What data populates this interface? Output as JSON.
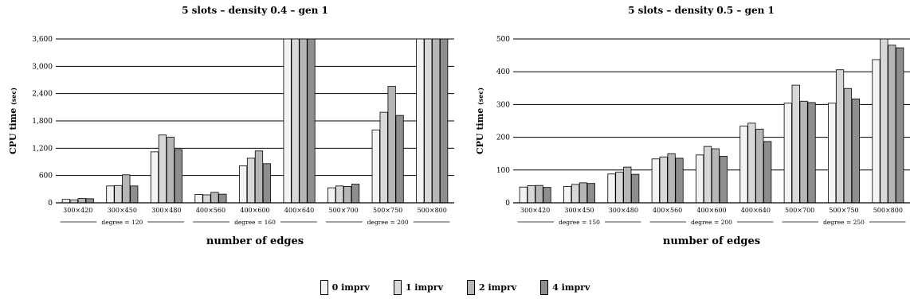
{
  "chart_data": [
    {
      "type": "bar",
      "title": "5 slots – density 0.4 – gen 1",
      "ylabel_main": "CPU time",
      "ylabel_unit": "(sec)",
      "xlabel": "number of edges",
      "ylim": [
        0,
        3600
      ],
      "yticks": [
        0,
        600,
        1200,
        1800,
        2400,
        3000,
        3600
      ],
      "ytick_labels": [
        "0",
        "600",
        "1,200",
        "1,800",
        "2,400",
        "3,000",
        "3,600"
      ],
      "grid": "horizontal",
      "categories": [
        "300×420",
        "300×450",
        "300×480",
        "400×560",
        "400×600",
        "400×640",
        "500×700",
        "500×750",
        "500×800"
      ],
      "groups": [
        {
          "label": "degree = 120",
          "from": 0,
          "to": 2
        },
        {
          "label": "degree = 160",
          "from": 3,
          "to": 5
        },
        {
          "label": "degree = 200",
          "from": 6,
          "to": 8
        }
      ],
      "series": [
        {
          "name": "0 imprv",
          "values": [
            75,
            370,
            1120,
            185,
            810,
            3600,
            330,
            1600,
            3600
          ]
        },
        {
          "name": "1 imprv",
          "values": [
            65,
            380,
            1490,
            175,
            980,
            3600,
            370,
            1990,
            3600
          ]
        },
        {
          "name": "2 imprv",
          "values": [
            95,
            615,
            1440,
            230,
            1140,
            3600,
            360,
            2560,
            3600
          ]
        },
        {
          "name": "4 imprv",
          "values": [
            90,
            370,
            1170,
            190,
            860,
            3600,
            410,
            1920,
            3600
          ]
        }
      ]
    },
    {
      "type": "bar",
      "title": "5 slots – density 0.5 – gen 1",
      "ylabel_main": "CPU time",
      "ylabel_unit": "(sec)",
      "xlabel": "number of edges",
      "ylim": [
        0,
        500
      ],
      "yticks": [
        0,
        100,
        200,
        300,
        400,
        500
      ],
      "ytick_labels": [
        "0",
        "100",
        "200",
        "300",
        "400",
        "500"
      ],
      "grid": "horizontal",
      "categories": [
        "300×420",
        "300×450",
        "300×480",
        "400×560",
        "400×600",
        "400×640",
        "500×700",
        "500×750",
        "500×800"
      ],
      "groups": [
        {
          "label": "degree = 150",
          "from": 0,
          "to": 2
        },
        {
          "label": "degree = 200",
          "from": 3,
          "to": 5
        },
        {
          "label": "degree = 250",
          "from": 6,
          "to": 8
        }
      ],
      "series": [
        {
          "name": "0 imprv",
          "values": [
            48,
            50,
            88,
            134,
            146,
            234,
            304,
            304,
            437
          ]
        },
        {
          "name": "1 imprv",
          "values": [
            52,
            56,
            94,
            140,
            172,
            243,
            359,
            406,
            520
          ]
        },
        {
          "name": "2 imprv",
          "values": [
            53,
            61,
            109,
            150,
            165,
            225,
            310,
            349,
            481
          ]
        },
        {
          "name": "4 imprv",
          "values": [
            47,
            59,
            87,
            136,
            142,
            187,
            306,
            317,
            473
          ]
        }
      ]
    }
  ],
  "colors": [
    "#f3f3f3",
    "#d8d8d8",
    "#b6b6b6",
    "#8e8e8e"
  ],
  "legend": [
    {
      "label": "0 imprv"
    },
    {
      "label": "1 imprv"
    },
    {
      "label": "2 imprv"
    },
    {
      "label": "4 imprv"
    }
  ]
}
